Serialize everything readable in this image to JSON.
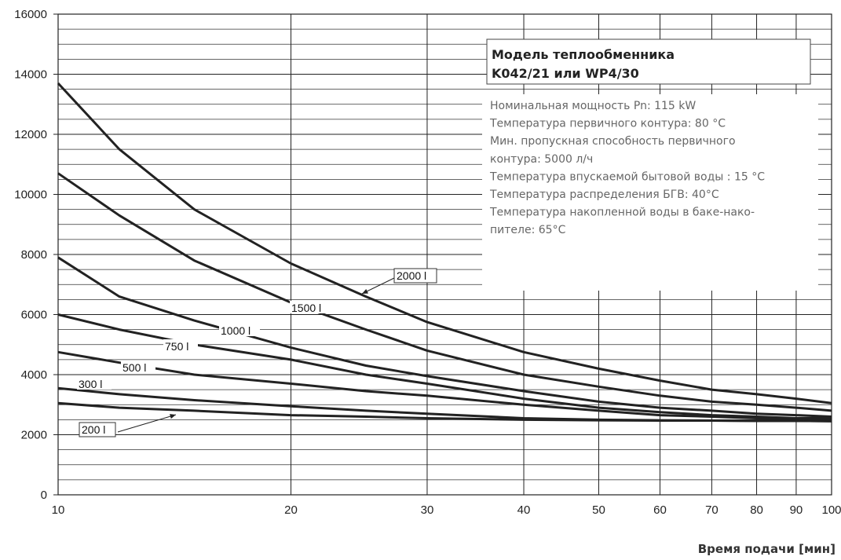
{
  "chart_data": {
    "type": "line",
    "title": "Модель теплообменника K042/21 или WP4/30",
    "xlabel": "Время подачи [мин]",
    "ylabel": "",
    "x_scale": "log",
    "xlim": [
      10,
      100
    ],
    "ylim": [
      0,
      16000
    ],
    "x_ticks": [
      "10",
      "20",
      "30",
      "40",
      "50",
      "60",
      "70",
      "80",
      "90",
      "100"
    ],
    "y_ticks": [
      "0",
      "2000",
      "4000",
      "6000",
      "8000",
      "10000",
      "12000",
      "14000",
      "16000"
    ],
    "grid": true,
    "info_lines": [
      "Номинальная мощность Pn: 115 kW",
      "Температура первичного контура: 80 °C",
      "Мин. пропускная способность первичного",
      "контура: 5000 л/ч",
      "Температура впускаемой бытовой воды : 15 °C",
      "Температура распределения БГВ: 40°C",
      "Температура накопленной воды в баке-нако-",
      "пителе: 65°C"
    ],
    "x": [
      10,
      12,
      15,
      20,
      25,
      30,
      40,
      50,
      60,
      70,
      80,
      90,
      100
    ],
    "series": [
      {
        "name": "2000 l",
        "values": [
          13700,
          11500,
          9500,
          7700,
          6600,
          5750,
          4750,
          4200,
          3800,
          3500,
          3350,
          3200,
          3050
        ]
      },
      {
        "name": "1500 l",
        "values": [
          10700,
          9300,
          7800,
          6400,
          5500,
          4800,
          4000,
          3600,
          3300,
          3100,
          3000,
          2900,
          2800
        ]
      },
      {
        "name": "1000 l",
        "values": [
          7900,
          6600,
          5800,
          4900,
          4300,
          3950,
          3450,
          3100,
          2900,
          2800,
          2700,
          2650,
          2600
        ]
      },
      {
        "name": "750 l",
        "values": [
          6000,
          5500,
          5000,
          4500,
          4000,
          3700,
          3200,
          2900,
          2750,
          2650,
          2600,
          2550,
          2550
        ]
      },
      {
        "name": "500 l",
        "values": [
          4750,
          4400,
          4000,
          3700,
          3450,
          3300,
          3000,
          2800,
          2650,
          2600,
          2550,
          2500,
          2500
        ]
      },
      {
        "name": "300 l",
        "values": [
          3550,
          3350,
          3150,
          2950,
          2800,
          2700,
          2550,
          2500,
          2480,
          2470,
          2460,
          2460,
          2450
        ]
      },
      {
        "name": "200 l",
        "values": [
          3050,
          2900,
          2800,
          2650,
          2600,
          2550,
          2500,
          2480,
          2470,
          2470,
          2460,
          2460,
          2450
        ]
      }
    ]
  }
}
